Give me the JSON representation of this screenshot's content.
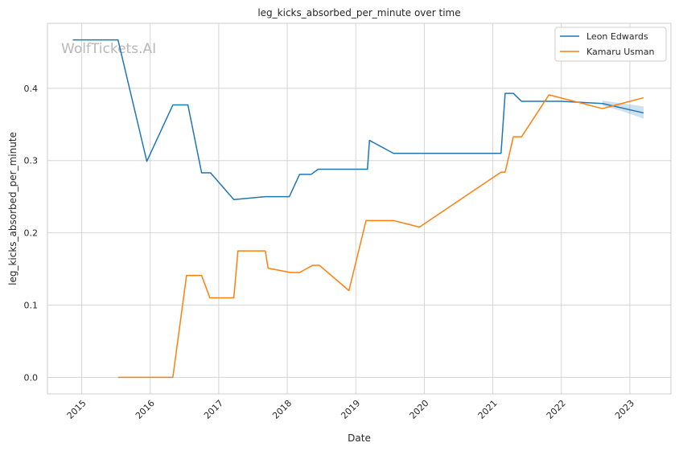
{
  "watermark": "WolfTickets.AI",
  "chart_data": {
    "type": "line",
    "title": "leg_kicks_absorbed_per_minute over time",
    "xlabel": "Date",
    "ylabel": "leg_kicks_absorbed_per_minute",
    "xlim": [
      2014.5,
      2023.6
    ],
    "ylim": [
      -0.023,
      0.49
    ],
    "x_ticks": [
      "2015",
      "2016",
      "2017",
      "2018",
      "2019",
      "2020",
      "2021",
      "2022",
      "2023"
    ],
    "y_ticks": [
      "0.0",
      "0.1",
      "0.2",
      "0.3",
      "0.4"
    ],
    "grid": true,
    "legend": "top-right",
    "series": [
      {
        "name": "Leon Edwards",
        "color": "#1f77b4",
        "x": [
          2014.87,
          2015.53,
          2015.95,
          2016.33,
          2016.55,
          2016.75,
          2016.88,
          2017.22,
          2017.68,
          2018.03,
          2018.18,
          2018.35,
          2018.45,
          2019.17,
          2019.2,
          2019.55,
          2020.0,
          2021.12,
          2021.18,
          2021.3,
          2021.42,
          2022.0,
          2022.6,
          2023.2
        ],
        "values": [
          0.467,
          0.467,
          0.299,
          0.377,
          0.377,
          0.283,
          0.283,
          0.246,
          0.25,
          0.25,
          0.281,
          0.281,
          0.288,
          0.288,
          0.328,
          0.31,
          0.31,
          0.31,
          0.393,
          0.393,
          0.382,
          0.382,
          0.379,
          0.366
        ],
        "band": {
          "x": [
            2022.6,
            2022.9,
            2023.2
          ],
          "lower": [
            0.376,
            0.368,
            0.358
          ],
          "upper": [
            0.383,
            0.379,
            0.375
          ]
        }
      },
      {
        "name": "Kamaru Usman",
        "color": "#ff7f0e",
        "x": [
          2015.53,
          2016.33,
          2016.53,
          2016.75,
          2016.87,
          2017.22,
          2017.28,
          2017.68,
          2017.72,
          2018.05,
          2018.18,
          2018.37,
          2018.47,
          2018.9,
          2019.15,
          2019.55,
          2019.93,
          2021.12,
          2021.18,
          2021.3,
          2021.42,
          2021.82,
          2022.6,
          2023.2
        ],
        "values": [
          0.0,
          0.0,
          0.141,
          0.141,
          0.11,
          0.11,
          0.175,
          0.175,
          0.151,
          0.145,
          0.145,
          0.155,
          0.155,
          0.12,
          0.217,
          0.217,
          0.208,
          0.284,
          0.284,
          0.333,
          0.333,
          0.391,
          0.372,
          0.387
        ]
      }
    ]
  }
}
